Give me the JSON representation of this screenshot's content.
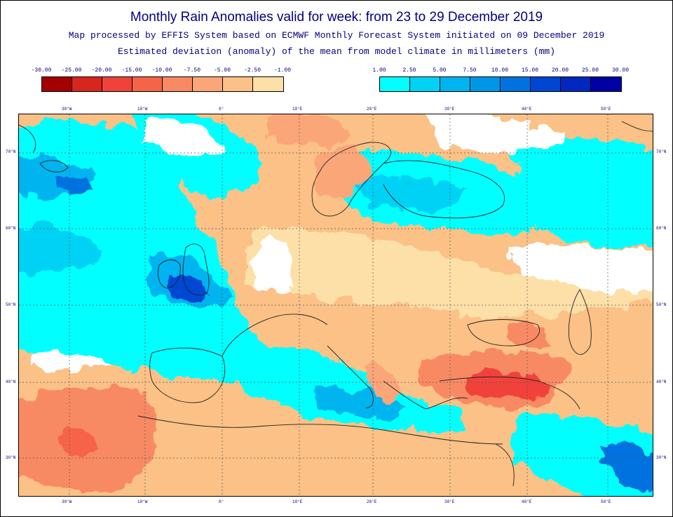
{
  "title": "Monthly Rain Anomalies valid for week: from 23 to 29 December 2019",
  "subtitle_1": "Map processed by EFFIS System based on ECMWF Monthly Forecast System initiated on 09 December 2019",
  "subtitle_2": "Estimated deviation (anomaly) of the mean from model climate in millimeters (mm)",
  "legend_negative": {
    "labels": [
      "-30.00",
      "-25.00",
      "-20.00",
      "-15.00",
      "-10.00",
      "-7.50",
      "-5.00",
      "-2.50",
      "-1.00"
    ],
    "colors": [
      "#a50000",
      "#d7261e",
      "#f0423a",
      "#f66448",
      "#f88a63",
      "#faa679",
      "#fbc186",
      "#fde0a8"
    ]
  },
  "legend_positive": {
    "labels": [
      "1.00",
      "2.50",
      "5.00",
      "7.50",
      "10.00",
      "15.00",
      "20.00",
      "25.00",
      "30.00"
    ],
    "colors": [
      "#00ffff",
      "#00d2f5",
      "#00b4f0",
      "#0096e6",
      "#0072e0",
      "#0046d2",
      "#0028c0",
      "#0000a5"
    ]
  },
  "map": {
    "lon_labels": [
      "30°W",
      "10°W",
      "0°",
      "10°E",
      "20°E",
      "30°E",
      "40°E",
      "50°E"
    ],
    "lat_labels": [
      "70°N",
      "60°N",
      "50°N",
      "40°N",
      "30°N"
    ],
    "colors": {
      "land_outline": "#222222",
      "grid": "#555555",
      "white": "#ffffff"
    }
  }
}
